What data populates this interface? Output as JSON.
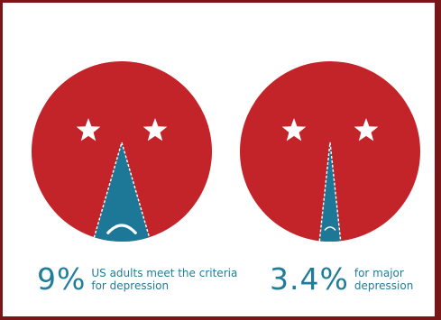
{
  "chart_data": [
    {
      "type": "pie",
      "value_percent": 9,
      "label_value": "9%",
      "label_lines": [
        "US adults meet the criteria",
        "for depression"
      ],
      "colors": {
        "face": "#c32429",
        "slice": "#1d7898",
        "stars": "#ffffff",
        "text": "#1f7c9a"
      }
    },
    {
      "type": "pie",
      "value_percent": 3.4,
      "label_value": "3.4%",
      "label_lines": [
        "for major",
        "depression"
      ],
      "colors": {
        "face": "#c32429",
        "slice": "#1d7898",
        "stars": "#ffffff",
        "text": "#1f7c9a"
      }
    }
  ]
}
